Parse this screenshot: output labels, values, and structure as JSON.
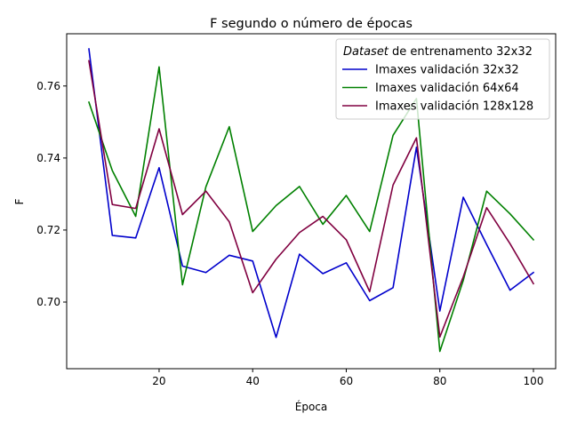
{
  "chart_data": {
    "type": "line",
    "title": "F segundo o número de épocas",
    "xlabel": "Época",
    "ylabel": "F",
    "xlim": [
      0.25,
      104.75
    ],
    "ylim": [
      0.6815,
      0.7745
    ],
    "xticks": [
      20,
      40,
      60,
      80,
      100
    ],
    "yticks": [
      0.7,
      0.72,
      0.74,
      0.76
    ],
    "xtick_labels": [
      "20",
      "40",
      "60",
      "80",
      "100"
    ],
    "ytick_labels": [
      "0.70",
      "0.72",
      "0.74",
      "0.76"
    ],
    "grid": false,
    "legend_position": "top-right",
    "legend_title_italic": "Dataset",
    "legend_title_rest": " de entrenamento 32x32",
    "x": [
      5,
      10,
      15,
      20,
      25,
      30,
      35,
      40,
      45,
      50,
      55,
      60,
      65,
      70,
      75,
      80,
      85,
      90,
      95,
      100
    ],
    "series": [
      {
        "name": "Imaxes validación 32x32",
        "color": "#0000cc",
        "values": [
          0.7703,
          0.7185,
          0.7178,
          0.7373,
          0.71,
          0.7082,
          0.713,
          0.7114,
          0.6902,
          0.7133,
          0.7079,
          0.7109,
          0.7004,
          0.704,
          0.743,
          0.6975,
          0.7291,
          0.716,
          0.7033,
          0.7082
        ]
      },
      {
        "name": "Imaxes validación 64x64",
        "color": "#008000",
        "values": [
          0.7555,
          0.7365,
          0.7238,
          0.7653,
          0.7048,
          0.732,
          0.7487,
          0.7196,
          0.7268,
          0.7321,
          0.7216,
          0.7296,
          0.7196,
          0.7463,
          0.7565,
          0.6863,
          0.706,
          0.7308,
          0.7245,
          0.7173
        ]
      },
      {
        "name": "Imaxes validación 128x128",
        "color": "#800040",
        "values": [
          0.767,
          0.7271,
          0.726,
          0.7481,
          0.7243,
          0.7308,
          0.7223,
          0.7026,
          0.7119,
          0.7193,
          0.7238,
          0.7173,
          0.7029,
          0.7325,
          0.7456,
          0.6903,
          0.707,
          0.7262,
          0.7162,
          0.7051
        ]
      }
    ]
  }
}
